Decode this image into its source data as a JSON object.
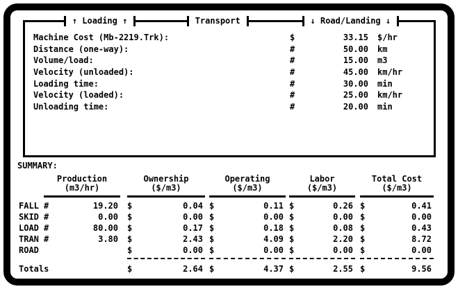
{
  "colors": {
    "foreground": "#000000",
    "background": "#ffffff"
  },
  "header": {
    "sections": [
      {
        "label": "↑ Loading ↑"
      },
      {
        "label": "Transport"
      },
      {
        "label": "↓ Road/Landing ↓"
      }
    ]
  },
  "parameters": {
    "rows": [
      {
        "label": "Machine Cost (Mb-2219.Trk):",
        "sign": "$",
        "value": "33.15",
        "unit": "$/hr"
      },
      {
        "label": "Distance (one-way):",
        "sign": "#",
        "value": "50.00",
        "unit": "km"
      },
      {
        "label": "Volume/load:",
        "sign": "#",
        "value": "15.00",
        "unit": "m3"
      },
      {
        "label": "Velocity (unloaded):",
        "sign": "#",
        "value": "45.00",
        "unit": "km/hr"
      },
      {
        "label": "Loading time:",
        "sign": "#",
        "value": "30.00",
        "unit": "min"
      },
      {
        "label": "Velocity (loaded):",
        "sign": "#",
        "value": "25.00",
        "unit": "km/hr"
      },
      {
        "label": "Unloading time:",
        "sign": "#",
        "value": "20.00",
        "unit": "min"
      }
    ]
  },
  "summary": {
    "title": "SUMMARY:",
    "currency_sign": "$",
    "columns": [
      {
        "name": "Production",
        "unit": "(m3/hr)"
      },
      {
        "name": "Ownership",
        "unit": "($/m3)"
      },
      {
        "name": "Operating",
        "unit": "($/m3)"
      },
      {
        "name": "Labor",
        "unit": "($/m3)"
      },
      {
        "name": "Total Cost",
        "unit": "($/m3)"
      }
    ],
    "rows": [
      {
        "label": "FALL",
        "sign": "#",
        "production": "19.20",
        "ownership": "0.04",
        "operating": "0.11",
        "labor": "0.26",
        "total": "0.41"
      },
      {
        "label": "SKID",
        "sign": "#",
        "production": "0.00",
        "ownership": "0.00",
        "operating": "0.00",
        "labor": "0.00",
        "total": "0.00"
      },
      {
        "label": "LOAD",
        "sign": "#",
        "production": "80.00",
        "ownership": "0.17",
        "operating": "0.18",
        "labor": "0.08",
        "total": "0.43"
      },
      {
        "label": "TRAN",
        "sign": "#",
        "production": "3.80",
        "ownership": "2.43",
        "operating": "4.09",
        "labor": "2.20",
        "total": "8.72"
      },
      {
        "label": "ROAD",
        "sign": "",
        "production": "",
        "ownership": "0.00",
        "operating": "0.00",
        "labor": "0.00",
        "total": "0.00"
      }
    ],
    "totals": {
      "label": "Totals",
      "ownership": "2.64",
      "operating": "4.37",
      "labor": "2.55",
      "total": "9.56"
    }
  }
}
